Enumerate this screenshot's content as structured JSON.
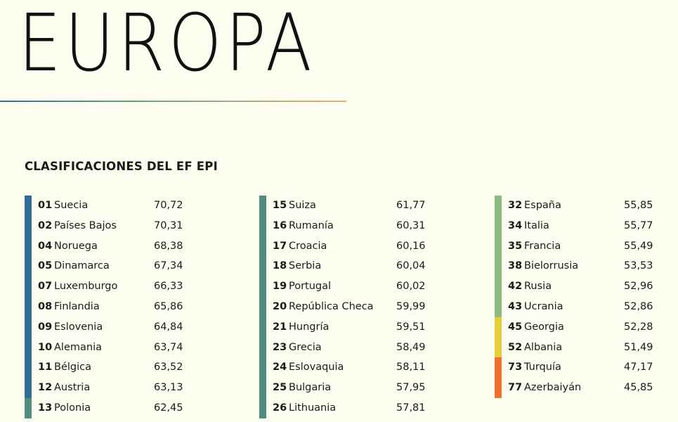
{
  "title": "EUROPA",
  "subtitle": "CLASIFICACIONES DEL EF EPI",
  "colors": {
    "very_high": "#2e6d96",
    "high": "#4f8c7e",
    "moderate": "#90bb80",
    "low": "#e6cd3c",
    "very_low": "#f07030"
  },
  "columns": [
    {
      "rows": [
        {
          "rank": "01",
          "country": "Suecia",
          "score": "70,72",
          "level": "very_high"
        },
        {
          "rank": "02",
          "country": "Países Bajos",
          "score": "70,31",
          "level": "very_high"
        },
        {
          "rank": "04",
          "country": "Noruega",
          "score": "68,38",
          "level": "very_high"
        },
        {
          "rank": "05",
          "country": "Dinamarca",
          "score": "67,34",
          "level": "very_high"
        },
        {
          "rank": "07",
          "country": "Luxemburgo",
          "score": "66,33",
          "level": "very_high"
        },
        {
          "rank": "08",
          "country": "Finlandia",
          "score": "65,86",
          "level": "very_high"
        },
        {
          "rank": "09",
          "country": "Eslovenia",
          "score": "64,84",
          "level": "very_high"
        },
        {
          "rank": "10",
          "country": "Alemania",
          "score": "63,74",
          "level": "very_high"
        },
        {
          "rank": "11",
          "country": "Bélgica",
          "score": "63,52",
          "level": "very_high"
        },
        {
          "rank": "12",
          "country": "Austria",
          "score": "63,13",
          "level": "very_high"
        },
        {
          "rank": "13",
          "country": "Polonia",
          "score": "62,45",
          "level": "high"
        }
      ]
    },
    {
      "rows": [
        {
          "rank": "15",
          "country": "Suiza",
          "score": "61,77",
          "level": "high"
        },
        {
          "rank": "16",
          "country": "Rumanía",
          "score": "60,31",
          "level": "high"
        },
        {
          "rank": "17",
          "country": "Croacia",
          "score": "60,16",
          "level": "high"
        },
        {
          "rank": "18",
          "country": "Serbia",
          "score": "60,04",
          "level": "high"
        },
        {
          "rank": "19",
          "country": "Portugal",
          "score": "60,02",
          "level": "high"
        },
        {
          "rank": "20",
          "country": "República Checa",
          "score": "59,99",
          "level": "high"
        },
        {
          "rank": "21",
          "country": "Hungría",
          "score": "59,51",
          "level": "high"
        },
        {
          "rank": "23",
          "country": "Grecia",
          "score": "58,49",
          "level": "high"
        },
        {
          "rank": "24",
          "country": "Eslovaquia",
          "score": "58,11",
          "level": "high"
        },
        {
          "rank": "25",
          "country": "Bulgaria",
          "score": "57,95",
          "level": "high"
        },
        {
          "rank": "26",
          "country": "Lithuania",
          "score": "57,81",
          "level": "high"
        }
      ]
    },
    {
      "rows": [
        {
          "rank": "32",
          "country": "España",
          "score": "55,85",
          "level": "moderate"
        },
        {
          "rank": "34",
          "country": "Italia",
          "score": "55,77",
          "level": "moderate"
        },
        {
          "rank": "35",
          "country": "Francia",
          "score": "55,49",
          "level": "moderate"
        },
        {
          "rank": "38",
          "country": "Bielorrusia",
          "score": "53,53",
          "level": "moderate"
        },
        {
          "rank": "42",
          "country": "Rusia",
          "score": "52,96",
          "level": "moderate"
        },
        {
          "rank": "43",
          "country": "Ucrania",
          "score": "52,86",
          "level": "moderate"
        },
        {
          "rank": "45",
          "country": "Georgia",
          "score": "52,28",
          "level": "low"
        },
        {
          "rank": "52",
          "country": "Albania",
          "score": "51,49",
          "level": "low"
        },
        {
          "rank": "73",
          "country": "Turquía",
          "score": "47,17",
          "level": "very_low"
        },
        {
          "rank": "77",
          "country": "Azerbaiyán",
          "score": "45,85",
          "level": "very_low"
        }
      ]
    }
  ]
}
